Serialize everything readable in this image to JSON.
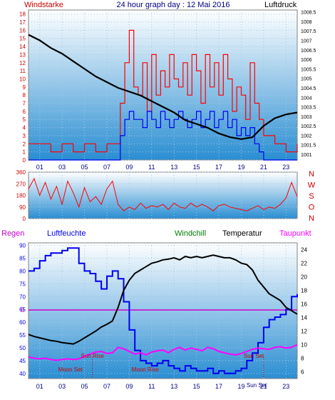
{
  "header": {
    "left_label": "Windstarke",
    "title": "24 hour graph day : 12 Mai 2016",
    "right_label": "Luftdruck"
  },
  "colors": {
    "bg_top": "#ffffff",
    "bg_bottom": "#2a8ed2",
    "wind": "#ff0000",
    "gust": "#0000ee",
    "pressure": "#000000",
    "direction": "#ff0000",
    "humidity": "#0000ee",
    "temperature": "#000000",
    "dewpoint": "#ff00ff",
    "windchill": "#008000",
    "rain_line": "#cc00cc",
    "marker": "#cc0000",
    "axis_left": "#cc0000",
    "axis_bottom": "#000080"
  },
  "x_ticks": [
    "01",
    "03",
    "05",
    "07",
    "09",
    "11",
    "13",
    "15",
    "17",
    "19",
    "21",
    "23"
  ],
  "chart_data": [
    {
      "type": "bar",
      "title": "24 hour graph day : 12 Mai 2016",
      "ylabel": "Windstarke",
      "y2label": "Luftdruck",
      "y_ticks": [
        "0",
        "1",
        "2",
        "3",
        "4",
        "5",
        "6",
        "7",
        "8",
        "9",
        "10",
        "11",
        "12",
        "13",
        "14",
        "15",
        "16",
        "17",
        "18"
      ],
      "y2_ticks": [
        "1001",
        "1001.5",
        "1002",
        "1002.5",
        "1003",
        "1003.5",
        "1004",
        "1004.5",
        "1005",
        "1005.5",
        "1006",
        "1006.5",
        "1007",
        "1007.5",
        "1008",
        "1008.5"
      ],
      "ylim": [
        0,
        18.5
      ],
      "y2lim": [
        1000.7,
        1008.6
      ],
      "xlim": [
        0,
        24
      ],
      "series": [
        {
          "name": "Windstarke",
          "x": [
            0,
            1,
            2,
            3,
            4,
            5,
            6,
            7,
            7.7,
            8.2,
            8.6,
            9,
            9.4,
            9.8,
            10.2,
            10.6,
            11,
            11.4,
            11.8,
            12.2,
            12.6,
            13,
            13.4,
            13.8,
            14.2,
            14.6,
            15,
            15.4,
            15.8,
            16.2,
            16.6,
            17,
            17.4,
            17.8,
            18.2,
            18.6,
            19,
            19.4,
            19.8,
            20.2,
            20.6,
            21,
            22,
            23,
            24
          ],
          "values": [
            2,
            2,
            1,
            2,
            1,
            2,
            1,
            2,
            2,
            7,
            12,
            16,
            9,
            8,
            12,
            6,
            13,
            8,
            11,
            9,
            13,
            10,
            9,
            12,
            8,
            13,
            11,
            7,
            13,
            9,
            12,
            8,
            13,
            10,
            6,
            9,
            8,
            5,
            12,
            7,
            5,
            3,
            2,
            1,
            2
          ]
        },
        {
          "name": "Boen",
          "x": [
            0,
            1,
            2,
            3,
            4,
            5,
            6,
            7,
            7.7,
            8.2,
            8.6,
            9,
            9.4,
            9.8,
            10.2,
            10.6,
            11,
            11.4,
            11.8,
            12.2,
            12.6,
            13,
            13.4,
            13.8,
            14.2,
            14.6,
            15,
            15.4,
            15.8,
            16.2,
            16.6,
            17,
            17.4,
            17.8,
            18.2,
            18.6,
            19,
            19.4,
            19.8,
            20.2,
            20.6,
            21,
            22,
            23,
            24
          ],
          "values": [
            0,
            0,
            0,
            0,
            0,
            0,
            0,
            0,
            0,
            3,
            5,
            6,
            5,
            5,
            4,
            6,
            5,
            4,
            6,
            5,
            4,
            5,
            6,
            5,
            4,
            5,
            6,
            4,
            5,
            6,
            4,
            5,
            6,
            4,
            5,
            3,
            4,
            3,
            4,
            2,
            1,
            0,
            0,
            0,
            0
          ]
        },
        {
          "name": "Luftdruck",
          "axis": "y2",
          "x": [
            0,
            1,
            2,
            3,
            4,
            5,
            6,
            7,
            8,
            9,
            10,
            11,
            12,
            13,
            14,
            15,
            16,
            17,
            18,
            19,
            20,
            21,
            22,
            23,
            24
          ],
          "values": [
            1007.3,
            1007.0,
            1006.6,
            1006.3,
            1005.9,
            1005.5,
            1005.1,
            1004.8,
            1004.5,
            1004.3,
            1004.1,
            1003.8,
            1003.5,
            1003.2,
            1002.8,
            1002.6,
            1002.4,
            1002.1,
            1001.9,
            1001.8,
            1001.9,
            1002.5,
            1002.9,
            1003.1,
            1003.2
          ]
        }
      ]
    },
    {
      "type": "line",
      "ylabel": "",
      "y_ticks": [
        "0",
        "90",
        "180",
        "270",
        "360"
      ],
      "direction_labels": [
        "N",
        "W",
        "S",
        "O",
        "N"
      ],
      "ylim": [
        0,
        360
      ],
      "xlim": [
        0,
        24
      ],
      "series": [
        {
          "name": "Windrichtung",
          "x": [
            0,
            0.5,
            1,
            1.5,
            2,
            2.5,
            3,
            3.5,
            4,
            4.5,
            5,
            5.5,
            6,
            6.5,
            7,
            7.5,
            8,
            8.5,
            9,
            9.5,
            10,
            10.5,
            11,
            11.5,
            12,
            12.5,
            13,
            13.5,
            14,
            14.5,
            15,
            15.5,
            16,
            16.5,
            17,
            17.5,
            18,
            18.5,
            19,
            19.5,
            20,
            20.5,
            21,
            21.5,
            22,
            22.5,
            23,
            23.5,
            24
          ],
          "values": [
            230,
            310,
            180,
            280,
            150,
            250,
            110,
            290,
            200,
            90,
            240,
            130,
            170,
            110,
            230,
            290,
            110,
            60,
            90,
            70,
            120,
            80,
            100,
            90,
            110,
            70,
            120,
            90,
            80,
            120,
            90,
            110,
            90,
            60,
            100,
            110,
            90,
            80,
            70,
            60,
            80,
            100,
            70,
            90,
            80,
            110,
            160,
            280,
            170
          ]
        }
      ]
    },
    {
      "type": "line",
      "ylabel": "Regen",
      "series_labels": [
        "Luftfeuchte",
        "Windchill",
        "Temperatur",
        "Taupunkt"
      ],
      "y_ticks": [
        "40",
        "45",
        "50",
        "55",
        "60",
        "65",
        "70",
        "75",
        "80",
        "85",
        "90"
      ],
      "y2_ticks": [
        "6",
        "8",
        "10",
        "12",
        "14",
        "16",
        "18",
        "20",
        "22",
        "24"
      ],
      "rain_tick": "0",
      "ylim": [
        38,
        91
      ],
      "y2lim": [
        5,
        25
      ],
      "xlim": [
        0,
        24
      ],
      "markers": [
        {
          "label": "Moon Set",
          "x": 5.7
        },
        {
          "label": "Sun Rise",
          "x": 5.7
        },
        {
          "label": "Moon Rise",
          "x": 9.4
        },
        {
          "label": "Sun Set",
          "x": 21.0
        },
        {
          "label": "Sun Set",
          "x": 19.6
        }
      ],
      "series": [
        {
          "name": "Luftfeuchte",
          "axis": "y",
          "x": [
            0,
            0.5,
            1,
            1.5,
            2,
            2.5,
            3,
            3.5,
            4,
            4.5,
            5,
            5.5,
            6,
            6.5,
            7,
            7.5,
            8,
            8.5,
            9,
            9.5,
            10,
            10.5,
            11,
            11.5,
            12,
            12.5,
            13,
            13.5,
            14,
            14.5,
            15,
            15.5,
            16,
            16.5,
            17,
            17.5,
            18,
            18.5,
            19,
            19.5,
            20,
            20.5,
            21,
            21.5,
            22,
            22.5,
            23,
            23.5,
            24
          ],
          "values": [
            80,
            81,
            84,
            86,
            87,
            87,
            88,
            89,
            89,
            83,
            80,
            79,
            76,
            73,
            78,
            80,
            77,
            68,
            57,
            49,
            45,
            44,
            43,
            44,
            45,
            43,
            42,
            41,
            43,
            42,
            41,
            41,
            42,
            40,
            41,
            40,
            40,
            41,
            42,
            45,
            48,
            52,
            58,
            61,
            62,
            63,
            65,
            70,
            71
          ]
        },
        {
          "name": "Temperatur",
          "axis": "y2",
          "x": [
            0,
            0.5,
            1,
            1.5,
            2,
            2.5,
            3,
            3.5,
            4,
            4.5,
            5,
            5.5,
            6,
            6.5,
            7,
            7.5,
            8,
            8.5,
            9,
            9.5,
            10,
            10.5,
            11,
            11.5,
            12,
            12.5,
            13,
            13.5,
            14,
            14.5,
            15,
            15.5,
            16,
            16.5,
            17,
            17.5,
            18,
            18.5,
            19,
            19.5,
            20,
            20.5,
            21,
            21.5,
            22,
            22.5,
            23,
            23.5,
            24
          ],
          "values": [
            11.5,
            11.2,
            11.0,
            10.8,
            10.6,
            10.5,
            10.3,
            10.2,
            10.1,
            10.5,
            11.0,
            11.5,
            12.0,
            12.6,
            13.0,
            13.5,
            15.5,
            18.0,
            19.5,
            20.5,
            21.0,
            21.5,
            22.0,
            22.2,
            22.5,
            22.6,
            22.8,
            22.5,
            23.0,
            22.8,
            23.0,
            22.8,
            23.0,
            23.2,
            23.0,
            22.8,
            22.8,
            22.5,
            22.0,
            21.8,
            21.0,
            19.5,
            18.5,
            17.5,
            17.0,
            16.5,
            15.5,
            15.0,
            14.5
          ]
        },
        {
          "name": "Taupunkt",
          "axis": "y2",
          "x": [
            0,
            0.5,
            1,
            1.5,
            2,
            2.5,
            3,
            3.5,
            4,
            4.5,
            5,
            5.5,
            6,
            6.5,
            7,
            7.5,
            8,
            8.5,
            9,
            9.5,
            10,
            10.5,
            11,
            11.5,
            12,
            12.5,
            13,
            13.5,
            14,
            14.5,
            15,
            15.5,
            16,
            16.5,
            17,
            17.5,
            18,
            18.5,
            19,
            19.5,
            20,
            20.5,
            21,
            21.5,
            22,
            22.5,
            23,
            23.5,
            24
          ],
          "values": [
            8.2,
            8.0,
            7.9,
            8.0,
            7.8,
            7.7,
            7.8,
            7.9,
            7.8,
            7.9,
            8.3,
            8.6,
            8.9,
            9.0,
            8.7,
            8.8,
            9.6,
            9.4,
            9.0,
            8.6,
            8.8,
            8.5,
            8.9,
            9.1,
            9.2,
            8.8,
            9.3,
            9.6,
            9.2,
            9.5,
            9.3,
            9.1,
            9.6,
            9.4,
            9.0,
            8.8,
            8.6,
            8.5,
            8.7,
            9.0,
            9.3,
            9.5,
            9.4,
            9.3,
            9.6,
            9.7,
            9.5,
            9.6,
            10.0
          ]
        }
      ]
    }
  ]
}
